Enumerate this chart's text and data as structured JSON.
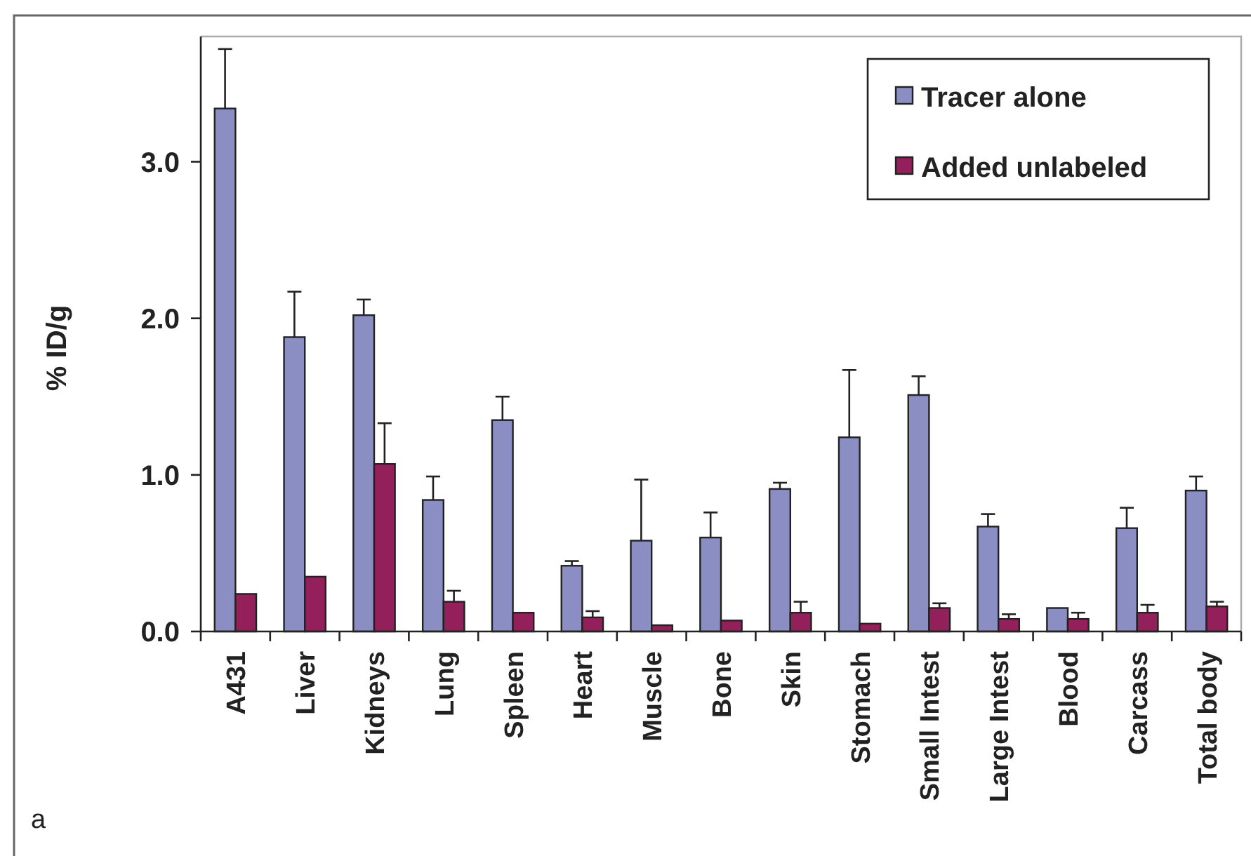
{
  "chart_data": {
    "type": "bar",
    "ylabel": "% ID/g",
    "categories": [
      "A431",
      "Liver",
      "Kidneys",
      "Lung",
      "Spleen",
      "Heart",
      "Muscle",
      "Bone",
      "Skin",
      "Stomach",
      "Small Intest",
      "Large Intest",
      "Blood",
      "Carcass",
      "Total body"
    ],
    "series": [
      {
        "name": "Tracer alone",
        "color": "#8a8ec2",
        "values": [
          3.34,
          1.88,
          2.02,
          0.84,
          1.35,
          0.42,
          0.58,
          0.6,
          0.91,
          1.24,
          1.51,
          0.67,
          0.15,
          0.66,
          0.9
        ],
        "errors": [
          [
            3.34,
            3.72
          ],
          [
            1.88,
            2.17
          ],
          [
            2.02,
            2.12
          ],
          [
            0.84,
            0.99
          ],
          [
            1.35,
            1.5
          ],
          [
            0.42,
            0.45
          ],
          [
            0.58,
            0.97
          ],
          [
            0.6,
            0.76
          ],
          [
            0.91,
            0.95
          ],
          [
            1.24,
            1.67
          ],
          [
            1.51,
            1.63
          ],
          [
            0.67,
            0.75
          ],
          null,
          [
            0.66,
            0.79
          ],
          [
            0.9,
            0.99
          ]
        ]
      },
      {
        "name": "Added unlabeled",
        "color": "#93205a",
        "values": [
          0.24,
          0.35,
          1.07,
          0.19,
          0.12,
          0.09,
          0.04,
          0.07,
          0.12,
          0.05,
          0.15,
          0.08,
          0.08,
          0.12,
          0.16
        ],
        "errors": [
          null,
          null,
          [
            1.07,
            1.33
          ],
          [
            0.19,
            0.26
          ],
          null,
          [
            0.09,
            0.13
          ],
          null,
          null,
          [
            0.12,
            0.19
          ],
          null,
          [
            0.15,
            0.18
          ],
          [
            0.08,
            0.11
          ],
          [
            0.08,
            0.12
          ],
          [
            0.12,
            0.17
          ],
          [
            0.16,
            0.19
          ]
        ]
      }
    ],
    "ylim": [
      0,
      3.8
    ],
    "yticks": [
      {
        "value": 0,
        "label": "0.0"
      },
      {
        "value": 1,
        "label": "1.0"
      },
      {
        "value": 2,
        "label": "2.0"
      },
      {
        "value": 3,
        "label": "3.0"
      }
    ],
    "legend": "top right",
    "annotations": [
      "a"
    ]
  }
}
